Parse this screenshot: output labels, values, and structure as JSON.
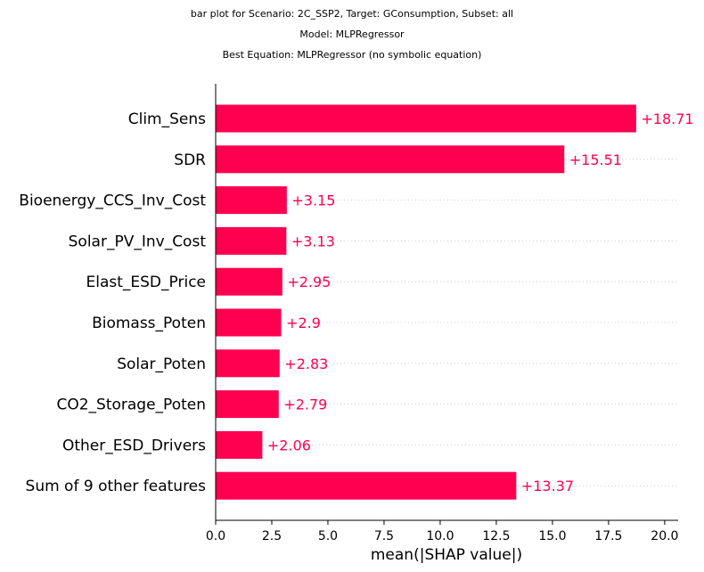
{
  "titles": [
    "bar plot for Scenario: 2C_SSP2, Target: GConsumption, Subset: all",
    "Model: MLPRegressor",
    "Best Equation: MLPRegressor (no symbolic equation)"
  ],
  "chart_data": {
    "type": "bar",
    "orientation": "horizontal",
    "categories": [
      "Clim_Sens",
      "SDR",
      "Bioenergy_CCS_Inv_Cost",
      "Solar_PV_Inv_Cost",
      "Elast_ESD_Price",
      "Biomass_Poten",
      "Solar_Poten",
      "CO2_Storage_Poten",
      "Other_ESD_Drivers",
      "Sum of 9 other features"
    ],
    "values": [
      18.71,
      15.51,
      3.15,
      3.13,
      2.95,
      2.9,
      2.83,
      2.79,
      2.06,
      13.37
    ],
    "value_labels": [
      "+18.71",
      "+15.51",
      "+3.15",
      "+3.13",
      "+2.95",
      "+2.9",
      "+2.83",
      "+2.79",
      "+2.06",
      "+13.37"
    ],
    "xlabel": "mean(|SHAP value|)",
    "xlim": [
      0,
      20.6
    ],
    "xticks": [
      0,
      2.5,
      5,
      7.5,
      10,
      12.5,
      15,
      17.5,
      20
    ],
    "xtick_labels": [
      "0.0",
      "2.5",
      "5.0",
      "7.5",
      "10.0",
      "12.5",
      "15.0",
      "17.5",
      "20.0"
    ],
    "bar_color": "#ff0051",
    "grid": false
  }
}
